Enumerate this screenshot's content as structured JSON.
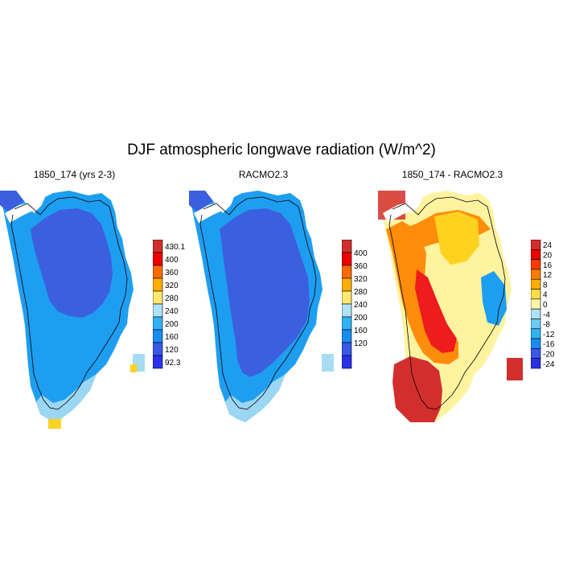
{
  "figure": {
    "title": "DJF atmospheric longwave radiation (W/m^2)"
  },
  "colors": {
    "ice_land": "#3c5fe0",
    "coast_light": "#a8dcf2",
    "mid_blue": "#1e9ef0",
    "yellow": "#ffd21f",
    "dark_red": "#d22e2e",
    "red": "#ee1c1c",
    "orange": "#ff8c0a",
    "light_yellow": "#fff3a0"
  },
  "panels": [
    {
      "title": "1850_174 (yrs 2-3)",
      "colorbar": {
        "colors": [
          "#d22e2e",
          "#ee0000",
          "#ff6a00",
          "#ffae00",
          "#ffe870",
          "#b0e2f5",
          "#30b2f5",
          "#1a8cf0",
          "#3a58e8",
          "#2a30e8"
        ],
        "labels": [
          "430.1",
          "400",
          "360",
          "320",
          "280",
          "240",
          "200",
          "160",
          "120",
          "92.3"
        ]
      }
    },
    {
      "title": "RACMO2.3",
      "colorbar": {
        "colors": [
          "#d22e2e",
          "#ee0000",
          "#ff6a00",
          "#ffae00",
          "#ffe870",
          "#b0e2f5",
          "#30b2f5",
          "#1a8cf0",
          "#3a58e8",
          "#2a30e8"
        ],
        "labels": [
          "400",
          "360",
          "320",
          "280",
          "240",
          "200",
          "160",
          "120"
        ]
      }
    },
    {
      "title": "1850_174 - RACMO2.3",
      "colorbar": {
        "colors": [
          "#d22e2e",
          "#ee0000",
          "#ff3a00",
          "#ff7a00",
          "#ffae00",
          "#ffdd44",
          "#fff6a8",
          "#b0e2f5",
          "#6ccaf5",
          "#30b2f5",
          "#1a8cf0",
          "#3a58e8",
          "#2a30e8"
        ],
        "labels": [
          "24",
          "20",
          "16",
          "12",
          "8",
          "4",
          "0",
          "-4",
          "-8",
          "-12",
          "-16",
          "-20",
          "-24"
        ]
      }
    }
  ]
}
